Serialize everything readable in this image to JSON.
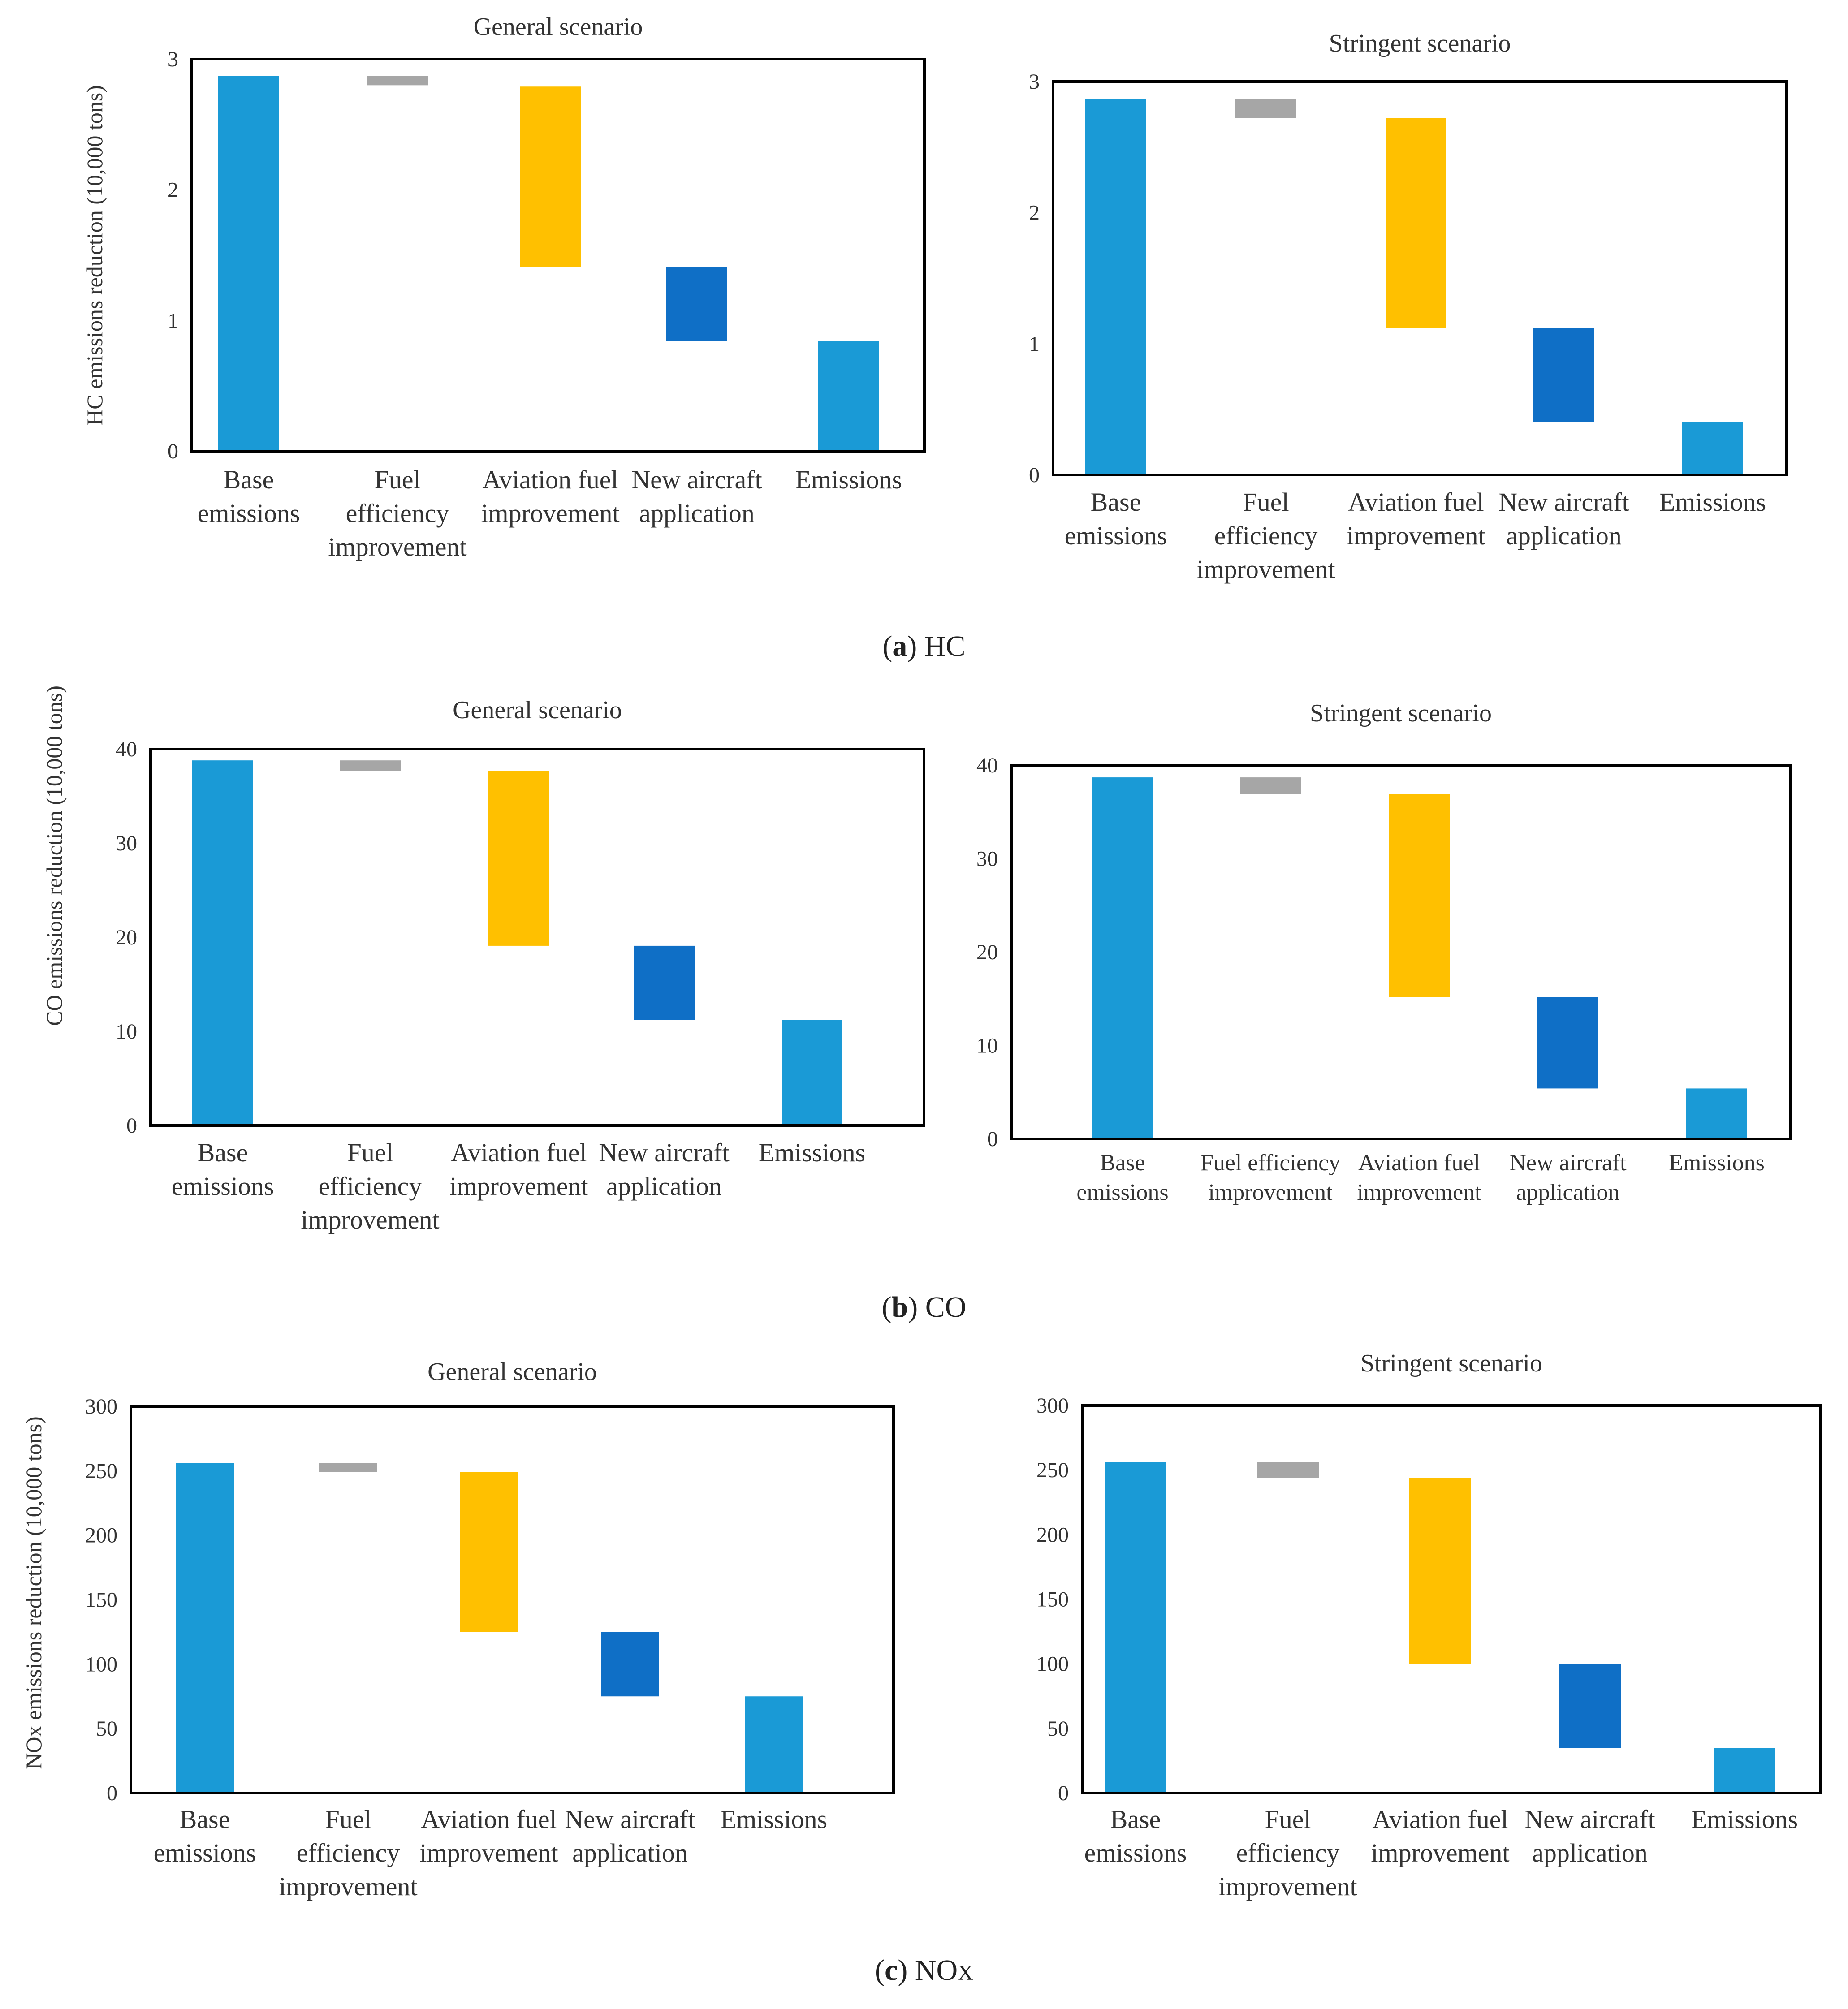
{
  "colors": {
    "base": "#1a9ad6",
    "fuel_efficiency": "#a6a6a6",
    "aviation_fuel": "#ffc000",
    "new_aircraft": "#0f6fc6",
    "emissions": "#1a9ad6",
    "axis": "#000000",
    "text": "#333333"
  },
  "captions": [
    {
      "letter": "a",
      "text": "HC",
      "sub": ""
    },
    {
      "letter": "b",
      "text": "CO",
      "sub": ""
    },
    {
      "letter": "c",
      "text": "NO",
      "sub": "X"
    }
  ],
  "chart_data": [
    {
      "id": "hc-general",
      "type": "waterfall",
      "title": "General scenario",
      "ylabel": "HC emissions reduction (10,000 tons)",
      "ylim": [
        0,
        3
      ],
      "yticks": [
        0,
        1,
        2,
        3
      ],
      "categories": [
        [
          "Base",
          "emissions"
        ],
        [
          "Fuel",
          "efficiency",
          "improvement"
        ],
        [
          "Aviation fuel",
          "improvement"
        ],
        [
          "New aircraft",
          "application"
        ],
        [
          "Emissions"
        ]
      ],
      "bars": [
        {
          "low": 0,
          "high": 2.87
        },
        {
          "low": 2.8,
          "high": 2.87
        },
        {
          "low": 1.41,
          "high": 2.79
        },
        {
          "low": 0.84,
          "high": 1.41
        },
        {
          "low": 0,
          "high": 0.84
        }
      ]
    },
    {
      "id": "hc-stringent",
      "type": "waterfall",
      "title": "Stringent scenario",
      "ylabel": "",
      "ylim": [
        0,
        3
      ],
      "yticks": [
        0,
        1,
        2,
        3
      ],
      "categories": [
        [
          "Base",
          "emissions"
        ],
        [
          "Fuel",
          "efficiency",
          "improvement"
        ],
        [
          "Aviation fuel",
          "improvement"
        ],
        [
          "New aircraft",
          "application"
        ],
        [
          "Emissions"
        ]
      ],
      "bars": [
        {
          "low": 0,
          "high": 2.87
        },
        {
          "low": 2.72,
          "high": 2.87
        },
        {
          "low": 1.12,
          "high": 2.72
        },
        {
          "low": 0.4,
          "high": 1.12
        },
        {
          "low": 0,
          "high": 0.4
        }
      ]
    },
    {
      "id": "co-general",
      "type": "waterfall",
      "title": "General scenario",
      "ylabel": "CO emissions reduction (10,000 tons)",
      "ylim": [
        0,
        40
      ],
      "yticks": [
        0,
        10,
        20,
        30,
        40
      ],
      "categories": [
        [
          "Base",
          "emissions"
        ],
        [
          "Fuel",
          "efficiency",
          "improvement"
        ],
        [
          "Aviation fuel",
          "improvement"
        ],
        [
          "New aircraft",
          "application"
        ],
        [
          "Emissions"
        ]
      ],
      "bars": [
        {
          "low": 0,
          "high": 38.8
        },
        {
          "low": 37.7,
          "high": 38.8
        },
        {
          "low": 19.1,
          "high": 37.7
        },
        {
          "low": 11.2,
          "high": 19.1
        },
        {
          "low": 0,
          "high": 11.2
        }
      ]
    },
    {
      "id": "co-stringent",
      "type": "waterfall",
      "title": "Stringent scenario",
      "ylabel": "",
      "ylim": [
        0,
        40
      ],
      "yticks": [
        0,
        10,
        20,
        30,
        40
      ],
      "categories": [
        [
          "Base",
          "emissions"
        ],
        [
          "Fuel efficiency",
          "improvement"
        ],
        [
          "Aviation fuel",
          "improvement"
        ],
        [
          "New aircraft",
          "application"
        ],
        [
          "Emissions"
        ]
      ],
      "bars": [
        {
          "low": 0,
          "high": 38.7
        },
        {
          "low": 36.9,
          "high": 38.7
        },
        {
          "low": 15.2,
          "high": 36.9
        },
        {
          "low": 5.4,
          "high": 15.2
        },
        {
          "low": 0,
          "high": 5.4
        }
      ]
    },
    {
      "id": "nox-general",
      "type": "waterfall",
      "title": "General scenario",
      "ylabel": "NOx emissions reduction (10,000 tons)",
      "ylim": [
        0,
        300
      ],
      "yticks": [
        0,
        50,
        100,
        150,
        200,
        250,
        300
      ],
      "categories": [
        [
          "Base",
          "emissions"
        ],
        [
          "Fuel",
          "efficiency",
          "improvement"
        ],
        [
          "Aviation fuel",
          "improvement"
        ],
        [
          "New aircraft",
          "application"
        ],
        [
          "Emissions"
        ]
      ],
      "bars": [
        {
          "low": 0,
          "high": 256
        },
        {
          "low": 249,
          "high": 256
        },
        {
          "low": 125,
          "high": 249
        },
        {
          "low": 75,
          "high": 125
        },
        {
          "low": 0,
          "high": 75
        }
      ]
    },
    {
      "id": "nox-stringent",
      "type": "waterfall",
      "title": "Stringent scenario",
      "ylabel": "",
      "ylim": [
        0,
        300
      ],
      "yticks": [
        0,
        50,
        100,
        150,
        200,
        250,
        300
      ],
      "categories": [
        [
          "Base",
          "emissions"
        ],
        [
          "Fuel",
          "efficiency",
          "improvement"
        ],
        [
          "Aviation fuel",
          "improvement"
        ],
        [
          "New aircraft",
          "application"
        ],
        [
          "Emissions"
        ]
      ],
      "bars": [
        {
          "low": 0,
          "high": 256
        },
        {
          "low": 244,
          "high": 256
        },
        {
          "low": 100,
          "high": 244
        },
        {
          "low": 35,
          "high": 100
        },
        {
          "low": 0,
          "high": 35
        }
      ]
    }
  ]
}
